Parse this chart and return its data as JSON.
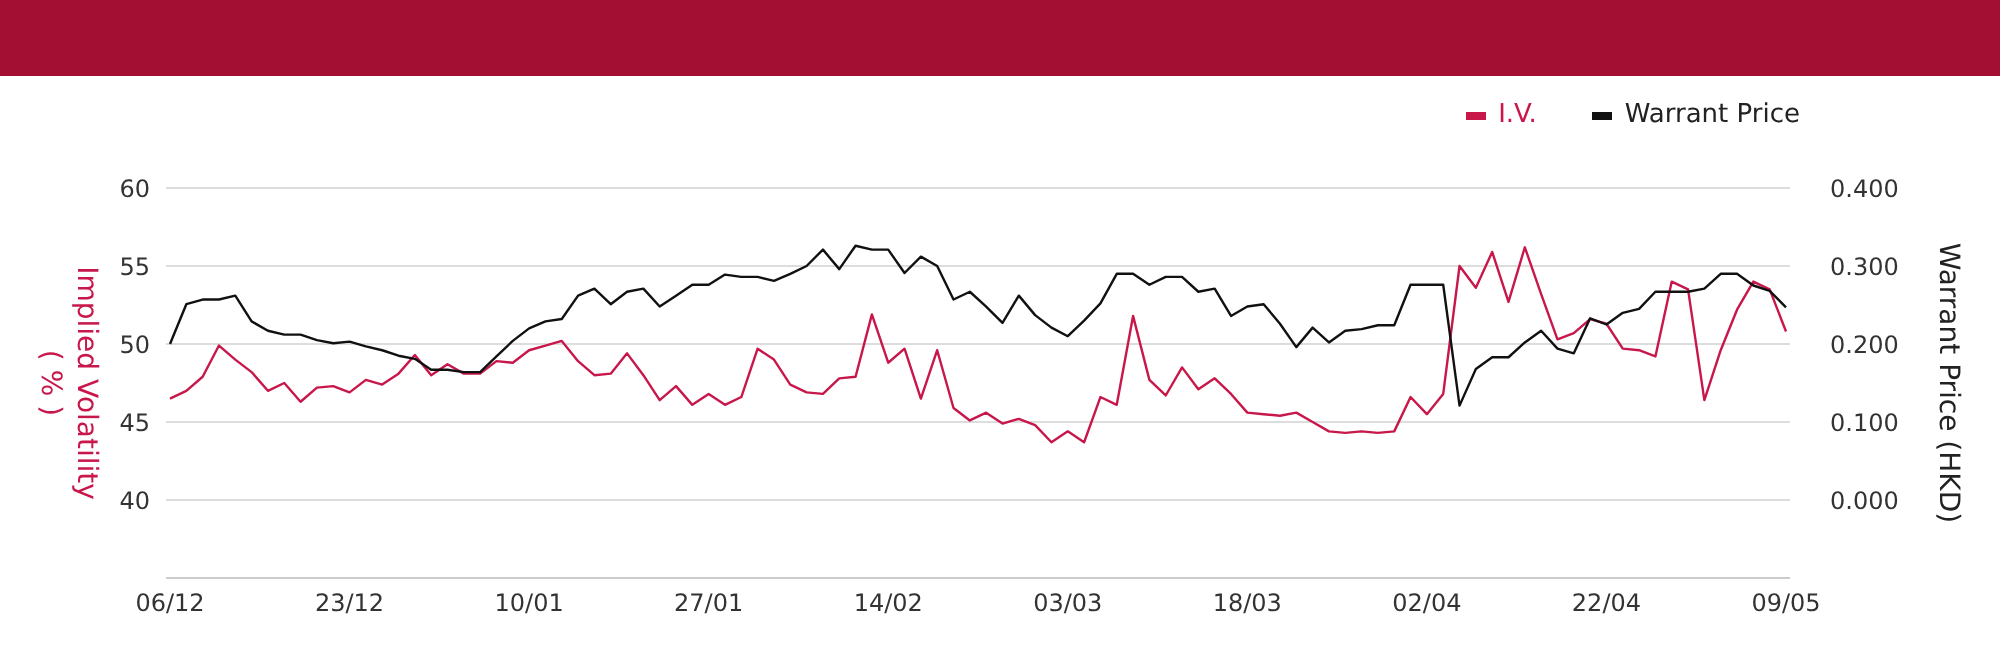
{
  "chart_data": {
    "type": "line",
    "categories": [
      "06/12",
      null,
      null,
      null,
      null,
      null,
      null,
      null,
      null,
      null,
      null,
      "23/12",
      null,
      null,
      null,
      null,
      null,
      null,
      null,
      null,
      null,
      null,
      "10/01",
      null,
      null,
      null,
      null,
      null,
      null,
      null,
      null,
      null,
      null,
      "27/01",
      null,
      null,
      null,
      null,
      null,
      null,
      null,
      null,
      null,
      null,
      "14/02",
      null,
      null,
      null,
      null,
      null,
      null,
      null,
      null,
      null,
      null,
      "03/03",
      null,
      null,
      null,
      null,
      null,
      null,
      null,
      null,
      null,
      null,
      "18/03",
      null,
      null,
      null,
      null,
      null,
      null,
      null,
      null,
      null,
      null,
      "02/04",
      null,
      null,
      null,
      null,
      null,
      null,
      null,
      null,
      null,
      null,
      "22/04",
      null,
      null,
      null,
      null,
      null,
      null,
      null,
      null,
      null,
      null,
      "09/05"
    ],
    "series": [
      {
        "name": "I.V.",
        "color": "#c8174a",
        "values": [
          46.5,
          47.0,
          47.9,
          49.9,
          49.0,
          48.2,
          47.0,
          47.5,
          46.3,
          47.2,
          47.3,
          46.9,
          47.7,
          47.4,
          48.1,
          49.3,
          48.0,
          48.7,
          48.1,
          48.1,
          48.9,
          48.8,
          49.6,
          49.9,
          50.2,
          48.9,
          48.0,
          48.1,
          49.4,
          48.0,
          46.4,
          47.3,
          46.1,
          46.8,
          46.1,
          46.6,
          49.7,
          49.0,
          47.4,
          46.9,
          46.8,
          47.8,
          47.9,
          51.9,
          48.8,
          49.7,
          46.5,
          49.6,
          45.9,
          45.1,
          45.6,
          44.9,
          45.2,
          44.8,
          43.7,
          44.4,
          43.7,
          46.6,
          46.1,
          51.8,
          47.7,
          46.7,
          48.5,
          47.1,
          47.8,
          46.8,
          45.6,
          45.5,
          45.4,
          45.6,
          45.0,
          44.4,
          44.3,
          44.4,
          44.3,
          44.4,
          46.6,
          45.5,
          46.8,
          55.0,
          53.6,
          55.9,
          52.7,
          56.2,
          53.2,
          50.3,
          50.7,
          51.6,
          51.3,
          49.7,
          49.6,
          49.2,
          54.0,
          53.5,
          46.4,
          49.6,
          52.2,
          54.0,
          53.5,
          50.8
        ]
      },
      {
        "name": "Warrant Price",
        "color": "#111111",
        "axis": "y2",
        "values": [
          0.2,
          0.251,
          0.257,
          0.257,
          0.262,
          0.229,
          0.217,
          0.212,
          0.212,
          0.205,
          0.201,
          0.203,
          0.197,
          0.192,
          0.185,
          0.181,
          0.167,
          0.167,
          0.164,
          0.164,
          0.184,
          0.204,
          0.22,
          0.229,
          0.232,
          0.262,
          0.271,
          0.251,
          0.267,
          0.271,
          0.248,
          0.262,
          0.276,
          0.276,
          0.289,
          0.286,
          0.286,
          0.281,
          0.29,
          0.3,
          0.321,
          0.296,
          0.326,
          0.321,
          0.321,
          0.291,
          0.312,
          0.3,
          0.257,
          0.267,
          0.248,
          0.227,
          0.262,
          0.237,
          0.221,
          0.21,
          0.23,
          0.252,
          0.29,
          0.29,
          0.276,
          0.286,
          0.286,
          0.267,
          0.271,
          0.236,
          0.248,
          0.251,
          0.226,
          0.196,
          0.221,
          0.202,
          0.217,
          0.219,
          0.224,
          0.224,
          0.276,
          0.276,
          0.276,
          0.121,
          0.168,
          0.183,
          0.183,
          0.202,
          0.217,
          0.194,
          0.188,
          0.233,
          0.225,
          0.24,
          0.245,
          0.267,
          0.267,
          0.267,
          0.271,
          0.29,
          0.29,
          0.275,
          0.268,
          0.247
        ]
      }
    ],
    "ylabel": "Implied Volatility\n( % )",
    "y2label": "Warrant Price (HKD)",
    "ylim": [
      35,
      60
    ],
    "yticks": [
      40,
      45,
      50,
      55,
      60
    ],
    "y2lim": [
      -0.1,
      0.4
    ],
    "y2ticks": [
      {
        "value": 0,
        "label": "0.000"
      },
      {
        "value": 0.1,
        "label": "0.100"
      },
      {
        "value": 0.2,
        "label": "0.200"
      },
      {
        "value": 0.3,
        "label": "0.300"
      },
      {
        "value": 0.4,
        "label": "0.400"
      }
    ],
    "grid": "y",
    "legend": "top right",
    "marker": "none",
    "line_style": "solid"
  }
}
